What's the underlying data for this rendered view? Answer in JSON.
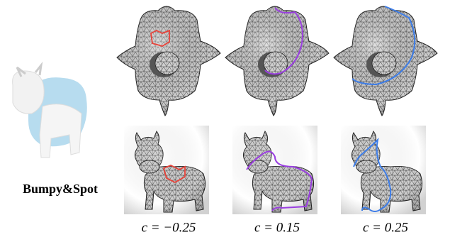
{
  "figure": {
    "label": "Bumpy&Spot",
    "captions": [
      "c = −0.25",
      "c = 0.15",
      "c = 0.25"
    ]
  }
}
